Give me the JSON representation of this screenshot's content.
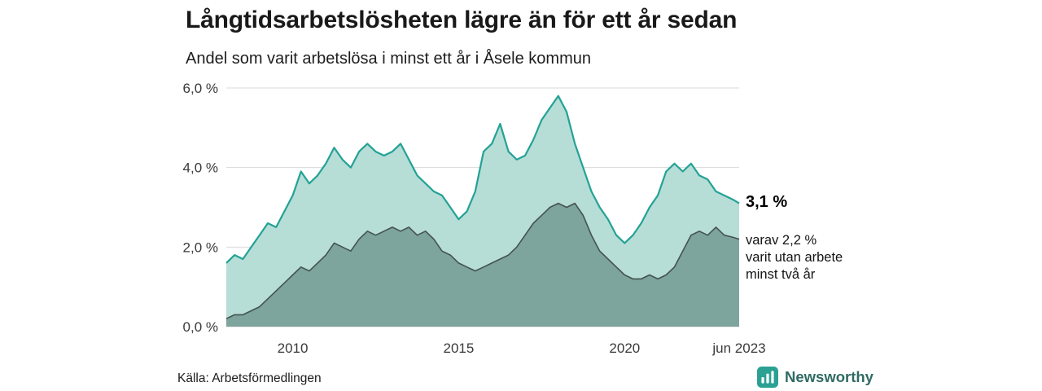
{
  "header": {
    "title": "Långtidsarbetslösheten lägre än för ett år sedan",
    "subtitle": "Andel som varit arbetslösa i minst ett år i Åsele kommun"
  },
  "chart_data": {
    "type": "area",
    "title": "Långtidsarbetslösheten lägre än för ett år sedan",
    "subtitle": "Andel som varit arbetslösa i minst ett år i Åsele kommun",
    "xlabel": "",
    "ylabel": "",
    "x_domain": [
      2008,
      2023.45
    ],
    "ylim": [
      0,
      6
    ],
    "grid": true,
    "y_ticks": [
      {
        "value": 0,
        "label": "0,0 %"
      },
      {
        "value": 2,
        "label": "2,0 %"
      },
      {
        "value": 4,
        "label": "4,0 %"
      },
      {
        "value": 6,
        "label": "6,0 %"
      }
    ],
    "x_ticks": [
      {
        "value": 2010,
        "label": "2010"
      },
      {
        "value": 2015,
        "label": "2015"
      },
      {
        "value": 2020,
        "label": "2020"
      },
      {
        "value": 2023.45,
        "label": "jun 2023"
      }
    ],
    "x": [
      2008,
      2008.25,
      2008.5,
      2008.75,
      2009,
      2009.25,
      2009.5,
      2009.75,
      2010,
      2010.25,
      2010.5,
      2010.75,
      2011,
      2011.25,
      2011.5,
      2011.75,
      2012,
      2012.25,
      2012.5,
      2012.75,
      2013,
      2013.25,
      2013.5,
      2013.75,
      2014,
      2014.25,
      2014.5,
      2014.75,
      2015,
      2015.25,
      2015.5,
      2015.75,
      2016,
      2016.25,
      2016.5,
      2016.75,
      2017,
      2017.25,
      2017.5,
      2017.75,
      2018,
      2018.25,
      2018.5,
      2018.75,
      2019,
      2019.25,
      2019.5,
      2019.75,
      2020,
      2020.25,
      2020.5,
      2020.75,
      2021,
      2021.25,
      2021.5,
      2021.75,
      2022,
      2022.25,
      2022.5,
      2022.75,
      2023,
      2023.25,
      2023.45
    ],
    "series": [
      {
        "id": "minst-ett-ar",
        "name": "Arbetslösa minst ett år",
        "stroke": "#23a295",
        "fill": "#b7ddd7",
        "stroke_width": 2.2,
        "latest_value": 3.1,
        "values": [
          1.6,
          1.8,
          1.7,
          2.0,
          2.3,
          2.6,
          2.5,
          2.9,
          3.3,
          3.9,
          3.6,
          3.8,
          4.1,
          4.5,
          4.2,
          4.0,
          4.4,
          4.6,
          4.4,
          4.3,
          4.4,
          4.6,
          4.2,
          3.8,
          3.6,
          3.4,
          3.3,
          3.0,
          2.7,
          2.9,
          3.4,
          4.4,
          4.6,
          5.1,
          4.4,
          4.2,
          4.3,
          4.7,
          5.2,
          5.5,
          5.8,
          5.4,
          4.6,
          4.0,
          3.4,
          3.0,
          2.7,
          2.3,
          2.1,
          2.3,
          2.6,
          3.0,
          3.3,
          3.9,
          4.1,
          3.9,
          4.1,
          3.8,
          3.7,
          3.4,
          3.3,
          3.2,
          3.1
        ]
      },
      {
        "id": "minst-tva-ar",
        "name": "Arbetslösa minst två år",
        "stroke": "#44534f",
        "fill": "#7da49d",
        "stroke_width": 1.6,
        "latest_value": 2.2,
        "values": [
          0.2,
          0.3,
          0.3,
          0.4,
          0.5,
          0.7,
          0.9,
          1.1,
          1.3,
          1.5,
          1.4,
          1.6,
          1.8,
          2.1,
          2.0,
          1.9,
          2.2,
          2.4,
          2.3,
          2.4,
          2.5,
          2.4,
          2.5,
          2.3,
          2.4,
          2.2,
          1.9,
          1.8,
          1.6,
          1.5,
          1.4,
          1.5,
          1.6,
          1.7,
          1.8,
          2.0,
          2.3,
          2.6,
          2.8,
          3.0,
          3.1,
          3.0,
          3.1,
          2.8,
          2.3,
          1.9,
          1.7,
          1.5,
          1.3,
          1.2,
          1.2,
          1.3,
          1.2,
          1.3,
          1.5,
          1.9,
          2.3,
          2.4,
          2.3,
          2.5,
          2.3,
          2.25,
          2.2
        ]
      }
    ]
  },
  "annotations": {
    "latest_value": "3,1 %",
    "sub_line1": "varav 2,2 %",
    "sub_line2": "varit utan arbete",
    "sub_line3": "minst två år"
  },
  "footer": {
    "source": "Källa: Arbetsförmedlingen",
    "brand": "Newsworthy"
  },
  "colors": {
    "accent_teal": "#23a295",
    "area_light": "#b7ddd7",
    "area_dark": "#7da49d",
    "dark_line": "#44534f",
    "gridline": "#d8d8d8",
    "brand": "#2f6b63"
  }
}
